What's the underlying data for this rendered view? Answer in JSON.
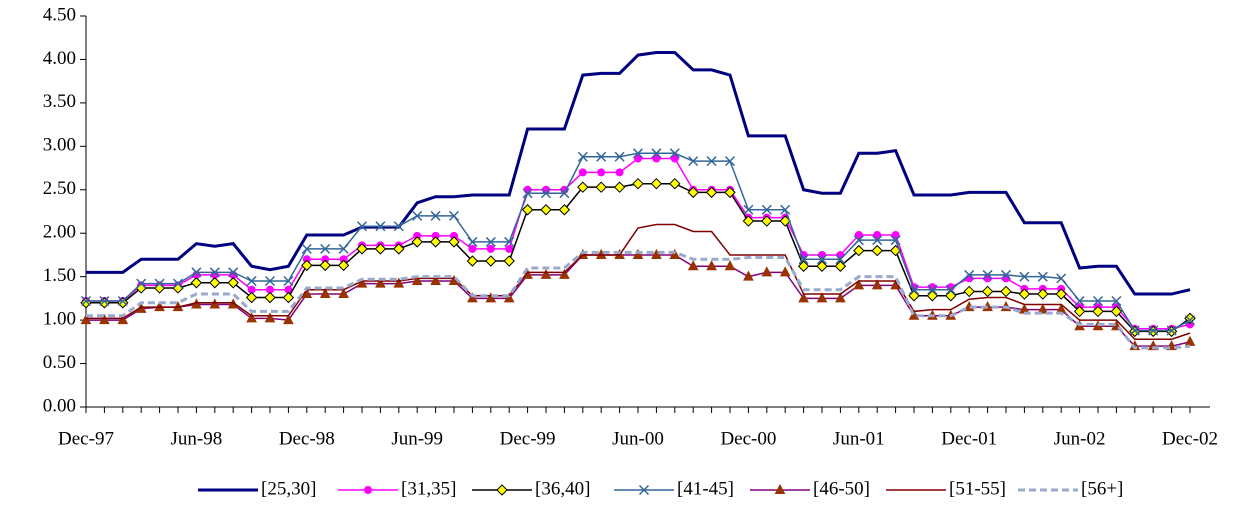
{
  "chart_data": {
    "type": "line",
    "categories": [
      "Dec-97",
      null,
      null,
      null,
      null,
      null,
      "Jun-98",
      null,
      null,
      null,
      null,
      null,
      "Dec-98",
      null,
      null,
      null,
      null,
      null,
      "Jun-99",
      null,
      null,
      null,
      null,
      null,
      "Dec-99",
      null,
      null,
      null,
      null,
      null,
      "Jun-00",
      null,
      null,
      null,
      null,
      null,
      "Dec-00",
      null,
      null,
      null,
      null,
      null,
      "Jun-01",
      null,
      null,
      null,
      null,
      null,
      "Dec-01",
      null,
      null,
      null,
      null,
      null,
      "Jun-02",
      null,
      null,
      null,
      null,
      null,
      "Dec-02"
    ],
    "ylim": [
      0,
      4.5
    ],
    "yticks": [
      {
        "value": 0,
        "label": "0.00"
      },
      {
        "value": 0.5,
        "label": "0.50"
      },
      {
        "value": 1,
        "label": "1.00"
      },
      {
        "value": 1.5,
        "label": "1.50"
      },
      {
        "value": 2,
        "label": "2.00"
      },
      {
        "value": 2.5,
        "label": "2.50"
      },
      {
        "value": 3,
        "label": "3.00"
      },
      {
        "value": 3.5,
        "label": "3.50"
      },
      {
        "value": 4,
        "label": "4.00"
      },
      {
        "value": 4.5,
        "label": "4.50"
      }
    ],
    "legend": "bottom",
    "series": [
      {
        "name": "[25,30]",
        "color": "#000080",
        "marker": "none",
        "dashed": false,
        "width": 3,
        "values": [
          1.55,
          1.55,
          1.55,
          1.7,
          1.7,
          1.7,
          1.88,
          1.85,
          1.88,
          1.62,
          1.58,
          1.62,
          1.98,
          1.98,
          1.98,
          2.07,
          2.07,
          2.07,
          2.35,
          2.42,
          2.42,
          2.44,
          2.44,
          2.44,
          3.2,
          3.2,
          3.2,
          3.82,
          3.84,
          3.84,
          4.05,
          4.08,
          4.08,
          3.88,
          3.88,
          3.82,
          3.12,
          3.12,
          3.12,
          2.5,
          2.46,
          2.46,
          2.92,
          2.92,
          2.95,
          2.44,
          2.44,
          2.44,
          2.47,
          2.47,
          2.47,
          2.12,
          2.12,
          2.12,
          1.6,
          1.62,
          1.62,
          1.3,
          1.3,
          1.3,
          1.35
        ]
      },
      {
        "name": "[31,35]",
        "color": "#ff00ff",
        "marker": "circle",
        "marker_color": "#ff00ff",
        "dashed": false,
        "width": 1.5,
        "values": [
          1.22,
          1.22,
          1.22,
          1.4,
          1.4,
          1.4,
          1.52,
          1.52,
          1.52,
          1.35,
          1.35,
          1.35,
          1.7,
          1.7,
          1.7,
          1.86,
          1.86,
          1.86,
          1.97,
          1.97,
          1.97,
          1.82,
          1.82,
          1.82,
          2.5,
          2.5,
          2.5,
          2.7,
          2.7,
          2.7,
          2.86,
          2.86,
          2.86,
          2.5,
          2.5,
          2.5,
          2.18,
          2.18,
          2.18,
          1.75,
          1.75,
          1.75,
          1.98,
          1.98,
          1.98,
          1.38,
          1.38,
          1.38,
          1.48,
          1.48,
          1.48,
          1.36,
          1.36,
          1.36,
          1.15,
          1.15,
          1.15,
          0.9,
          0.9,
          0.9,
          0.95
        ]
      },
      {
        "name": "[36,40]",
        "color": "#000000",
        "marker": "diamond",
        "marker_color": "#ffff00",
        "dashed": false,
        "width": 1.5,
        "values": [
          1.2,
          1.2,
          1.2,
          1.37,
          1.37,
          1.37,
          1.43,
          1.43,
          1.43,
          1.26,
          1.26,
          1.26,
          1.63,
          1.63,
          1.63,
          1.82,
          1.82,
          1.82,
          1.9,
          1.9,
          1.9,
          1.68,
          1.68,
          1.68,
          2.27,
          2.27,
          2.27,
          2.53,
          2.53,
          2.53,
          2.57,
          2.57,
          2.57,
          2.47,
          2.47,
          2.47,
          2.14,
          2.14,
          2.14,
          1.62,
          1.62,
          1.62,
          1.8,
          1.8,
          1.8,
          1.28,
          1.28,
          1.28,
          1.33,
          1.33,
          1.33,
          1.3,
          1.3,
          1.3,
          1.1,
          1.1,
          1.1,
          0.87,
          0.87,
          0.87,
          1.02
        ]
      },
      {
        "name": "[41-45]",
        "color": "#336699",
        "marker": "x",
        "marker_color": "#336699",
        "dashed": false,
        "width": 1.5,
        "values": [
          1.22,
          1.22,
          1.22,
          1.42,
          1.42,
          1.42,
          1.55,
          1.55,
          1.55,
          1.45,
          1.45,
          1.45,
          1.82,
          1.82,
          1.82,
          2.08,
          2.08,
          2.08,
          2.2,
          2.2,
          2.2,
          1.9,
          1.9,
          1.9,
          2.46,
          2.46,
          2.46,
          2.88,
          2.88,
          2.88,
          2.92,
          2.92,
          2.92,
          2.83,
          2.83,
          2.83,
          2.27,
          2.27,
          2.27,
          1.7,
          1.7,
          1.7,
          1.92,
          1.92,
          1.92,
          1.35,
          1.35,
          1.35,
          1.52,
          1.52,
          1.52,
          1.5,
          1.5,
          1.48,
          1.22,
          1.22,
          1.22,
          0.88,
          0.88,
          0.88,
          1.0
        ]
      },
      {
        "name": "[46-50]",
        "color": "#800080",
        "marker": "triangle",
        "marker_color": "#993300",
        "dashed": false,
        "width": 1.5,
        "values": [
          1.0,
          1.0,
          1.0,
          1.13,
          1.15,
          1.15,
          1.18,
          1.18,
          1.18,
          1.02,
          1.02,
          1.0,
          1.3,
          1.3,
          1.3,
          1.42,
          1.42,
          1.42,
          1.45,
          1.45,
          1.45,
          1.25,
          1.25,
          1.25,
          1.52,
          1.52,
          1.52,
          1.75,
          1.75,
          1.75,
          1.75,
          1.75,
          1.75,
          1.62,
          1.62,
          1.62,
          1.5,
          1.55,
          1.55,
          1.25,
          1.25,
          1.25,
          1.4,
          1.4,
          1.4,
          1.05,
          1.05,
          1.05,
          1.15,
          1.15,
          1.15,
          1.12,
          1.12,
          1.12,
          0.93,
          0.93,
          0.93,
          0.7,
          0.7,
          0.7,
          0.75
        ]
      },
      {
        "name": "[51-55]",
        "color": "#800000",
        "marker": "none",
        "dashed": false,
        "width": 1.5,
        "values": [
          1.02,
          1.02,
          1.02,
          1.15,
          1.15,
          1.15,
          1.2,
          1.2,
          1.2,
          1.05,
          1.05,
          1.05,
          1.35,
          1.35,
          1.35,
          1.45,
          1.45,
          1.45,
          1.48,
          1.48,
          1.48,
          1.28,
          1.28,
          1.28,
          1.55,
          1.55,
          1.55,
          1.75,
          1.75,
          1.75,
          2.06,
          2.1,
          2.1,
          2.02,
          2.02,
          1.75,
          1.75,
          1.75,
          1.75,
          1.3,
          1.3,
          1.3,
          1.45,
          1.45,
          1.45,
          1.1,
          1.12,
          1.12,
          1.24,
          1.26,
          1.26,
          1.18,
          1.18,
          1.18,
          1.0,
          1.0,
          1.0,
          0.78,
          0.78,
          0.78,
          0.85
        ]
      },
      {
        "name": "[56+]",
        "color": "#99aacc",
        "marker": "none",
        "dashed": true,
        "width": 3,
        "values": [
          1.05,
          1.05,
          1.05,
          1.2,
          1.2,
          1.2,
          1.3,
          1.3,
          1.3,
          1.1,
          1.1,
          1.1,
          1.37,
          1.37,
          1.37,
          1.47,
          1.47,
          1.47,
          1.5,
          1.5,
          1.5,
          1.28,
          1.28,
          1.28,
          1.6,
          1.6,
          1.6,
          1.78,
          1.78,
          1.78,
          1.78,
          1.78,
          1.78,
          1.7,
          1.7,
          1.7,
          1.72,
          1.72,
          1.72,
          1.35,
          1.35,
          1.35,
          1.5,
          1.5,
          1.5,
          1.05,
          1.05,
          1.05,
          1.15,
          1.15,
          1.15,
          1.08,
          1.08,
          1.08,
          0.95,
          0.95,
          0.95,
          0.68,
          0.68,
          0.68,
          0.7
        ]
      }
    ]
  }
}
